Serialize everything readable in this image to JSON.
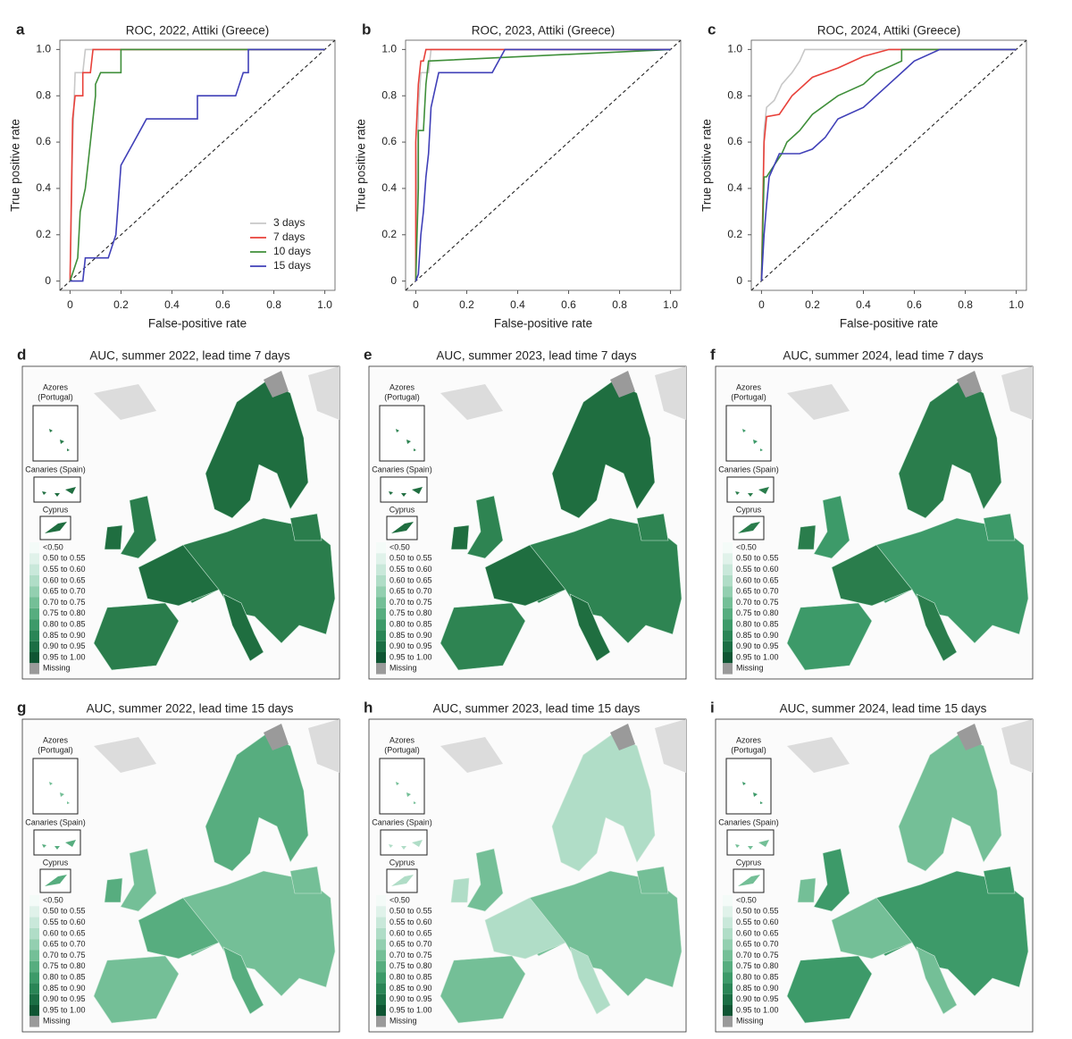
{
  "chart_data": [
    {
      "type": "line",
      "panel": "a",
      "title": "ROC, 2022, Attiki (Greece)",
      "x_label": "False-positive rate",
      "y_label": "True positive rate",
      "xlim": [
        -0.04,
        1.04
      ],
      "ylim": [
        -0.04,
        1.04
      ],
      "xticks": [
        0,
        0.2,
        0.4,
        0.6,
        0.8,
        {
          "value": 1,
          "label": "1.0"
        }
      ],
      "yticks": [
        0,
        0.2,
        0.4,
        0.6,
        0.8,
        {
          "value": 1,
          "label": "1.0"
        }
      ],
      "legend": "lower right",
      "series": [
        {
          "name": "3 days",
          "color": "#c8c8c8",
          "x": [
            0,
            0.01,
            0.02,
            0.05,
            0.06,
            1
          ],
          "values": [
            0,
            0.6,
            0.9,
            0.9,
            1,
            1
          ]
        },
        {
          "name": "7 days",
          "color": "#e8413a",
          "x": [
            0,
            0.01,
            0.02,
            0.05,
            0.05,
            0.08,
            0.09,
            1
          ],
          "values": [
            0,
            0.7,
            0.8,
            0.8,
            0.9,
            0.9,
            1,
            1
          ]
        },
        {
          "name": "10 days",
          "color": "#3f8f3a",
          "x": [
            0,
            0.03,
            0.04,
            0.06,
            0.08,
            0.1,
            0.1,
            0.12,
            0.2,
            0.2,
            1
          ],
          "values": [
            0,
            0.1,
            0.3,
            0.4,
            0.6,
            0.8,
            0.85,
            0.9,
            0.9,
            1,
            1
          ]
        },
        {
          "name": "15 days",
          "color": "#4040b8",
          "x": [
            0,
            0.05,
            0.06,
            0.15,
            0.18,
            0.2,
            0.25,
            0.3,
            0.5,
            0.5,
            0.65,
            0.68,
            0.7,
            0.7,
            1
          ],
          "values": [
            0,
            0,
            0.1,
            0.1,
            0.2,
            0.5,
            0.6,
            0.7,
            0.7,
            0.8,
            0.8,
            0.9,
            0.9,
            1,
            1
          ]
        }
      ]
    },
    {
      "type": "line",
      "panel": "b",
      "title": "ROC, 2023, Attiki (Greece)",
      "x_label": "False-positive rate",
      "y_label": "True positive rate",
      "xlim": [
        -0.04,
        1.04
      ],
      "ylim": [
        -0.04,
        1.04
      ],
      "xticks": [
        0,
        0.2,
        0.4,
        0.6,
        0.8,
        {
          "value": 1,
          "label": "1.0"
        }
      ],
      "yticks": [
        0,
        0.2,
        0.4,
        0.6,
        0.8,
        {
          "value": 1,
          "label": "1.0"
        }
      ],
      "series": [
        {
          "color": "#c8c8c8",
          "x": [
            0,
            0.01,
            0.02,
            0.05,
            0.06,
            1
          ],
          "values": [
            0,
            0.75,
            0.9,
            0.9,
            1,
            1
          ]
        },
        {
          "color": "#e8413a",
          "x": [
            0,
            0,
            0.01,
            0.02,
            0.03,
            0.04,
            1
          ],
          "values": [
            0,
            0.6,
            0.85,
            0.95,
            0.95,
            1,
            1
          ]
        },
        {
          "color": "#3f8f3a",
          "x": [
            0,
            0.01,
            0.01,
            0.03,
            0.04,
            0.05,
            1
          ],
          "values": [
            0,
            0.4,
            0.65,
            0.65,
            0.85,
            0.95,
            1
          ]
        },
        {
          "color": "#4040b8",
          "x": [
            0,
            0.01,
            0.02,
            0.03,
            0.04,
            0.05,
            0.06,
            0.08,
            0.09,
            0.3,
            0.35,
            1
          ],
          "values": [
            0,
            0.03,
            0.2,
            0.3,
            0.45,
            0.55,
            0.75,
            0.85,
            0.9,
            0.9,
            1,
            1
          ]
        }
      ]
    },
    {
      "type": "line",
      "panel": "c",
      "title": "ROC, 2024, Attiki (Greece)",
      "x_label": "False-positive rate",
      "y_label": "True positive rate",
      "xlim": [
        -0.04,
        1.04
      ],
      "ylim": [
        -0.04,
        1.04
      ],
      "xticks": [
        0,
        0.2,
        0.4,
        0.6,
        0.8,
        {
          "value": 1,
          "label": "1.0"
        }
      ],
      "yticks": [
        0,
        0.2,
        0.4,
        0.6,
        0.8,
        {
          "value": 1,
          "label": "1.0"
        }
      ],
      "series": [
        {
          "color": "#c8c8c8",
          "x": [
            0,
            0.01,
            0.02,
            0.05,
            0.08,
            0.12,
            0.15,
            0.17,
            0.3,
            1
          ],
          "values": [
            0,
            0.65,
            0.75,
            0.78,
            0.85,
            0.9,
            0.95,
            1,
            1,
            1
          ]
        },
        {
          "color": "#e8413a",
          "x": [
            0,
            0.01,
            0.02,
            0.07,
            0.12,
            0.2,
            0.3,
            0.4,
            0.5,
            0.55,
            1
          ],
          "values": [
            0,
            0.6,
            0.71,
            0.72,
            0.8,
            0.88,
            0.92,
            0.97,
            1,
            1,
            1
          ]
        },
        {
          "color": "#3f8f3a",
          "x": [
            0,
            0.01,
            0.02,
            0.08,
            0.1,
            0.15,
            0.2,
            0.3,
            0.4,
            0.45,
            0.55,
            0.55,
            1
          ],
          "values": [
            0,
            0.45,
            0.45,
            0.55,
            0.6,
            0.65,
            0.72,
            0.8,
            0.85,
            0.9,
            0.95,
            1,
            1
          ]
        },
        {
          "color": "#4040b8",
          "x": [
            0,
            0.01,
            0.02,
            0.03,
            0.05,
            0.07,
            0.15,
            0.2,
            0.25,
            0.3,
            0.4,
            0.5,
            0.6,
            0.7,
            1
          ],
          "values": [
            0,
            0.2,
            0.33,
            0.45,
            0.5,
            0.55,
            0.55,
            0.57,
            0.62,
            0.7,
            0.75,
            0.85,
            0.95,
            1,
            1
          ]
        }
      ]
    }
  ],
  "maps": [
    {
      "panel": "d",
      "title": "AUC, summer 2022, lead time 7 days"
    },
    {
      "panel": "e",
      "title": "AUC, summer 2023, lead time 7 days"
    },
    {
      "panel": "f",
      "title": "AUC, summer 2024, lead time 7 days"
    },
    {
      "panel": "g",
      "title": "AUC, summer 2022, lead time 15 days"
    },
    {
      "panel": "h",
      "title": "AUC, summer 2023, lead time 15 days"
    },
    {
      "panel": "i",
      "title": "AUC, summer 2024, lead time 15 days"
    }
  ],
  "map_insets": {
    "azores": [
      "Azores",
      "(Portugal)"
    ],
    "canaries": "Canaries (Spain)",
    "cyprus": "Cyprus"
  },
  "map_legend": {
    "items": [
      "<0.50",
      "0.50 to 0.55",
      "0.55 to 0.60",
      "0.60 to 0.65",
      "0.65 to 0.70",
      "0.70 to 0.75",
      "0.75 to 0.80",
      "0.80 to 0.85",
      "0.85 to 0.90",
      "0.90 to 0.95",
      "0.95 to 1.00",
      "Missing"
    ],
    "colors": [
      "#f4fbf8",
      "#e0f2ea",
      "#c9e8da",
      "#b0ddc7",
      "#93cfb0",
      "#74bf97",
      "#57ad7f",
      "#3d9a69",
      "#2a8556",
      "#1b6e44",
      "#0f5533",
      "#9a9a9a"
    ]
  }
}
